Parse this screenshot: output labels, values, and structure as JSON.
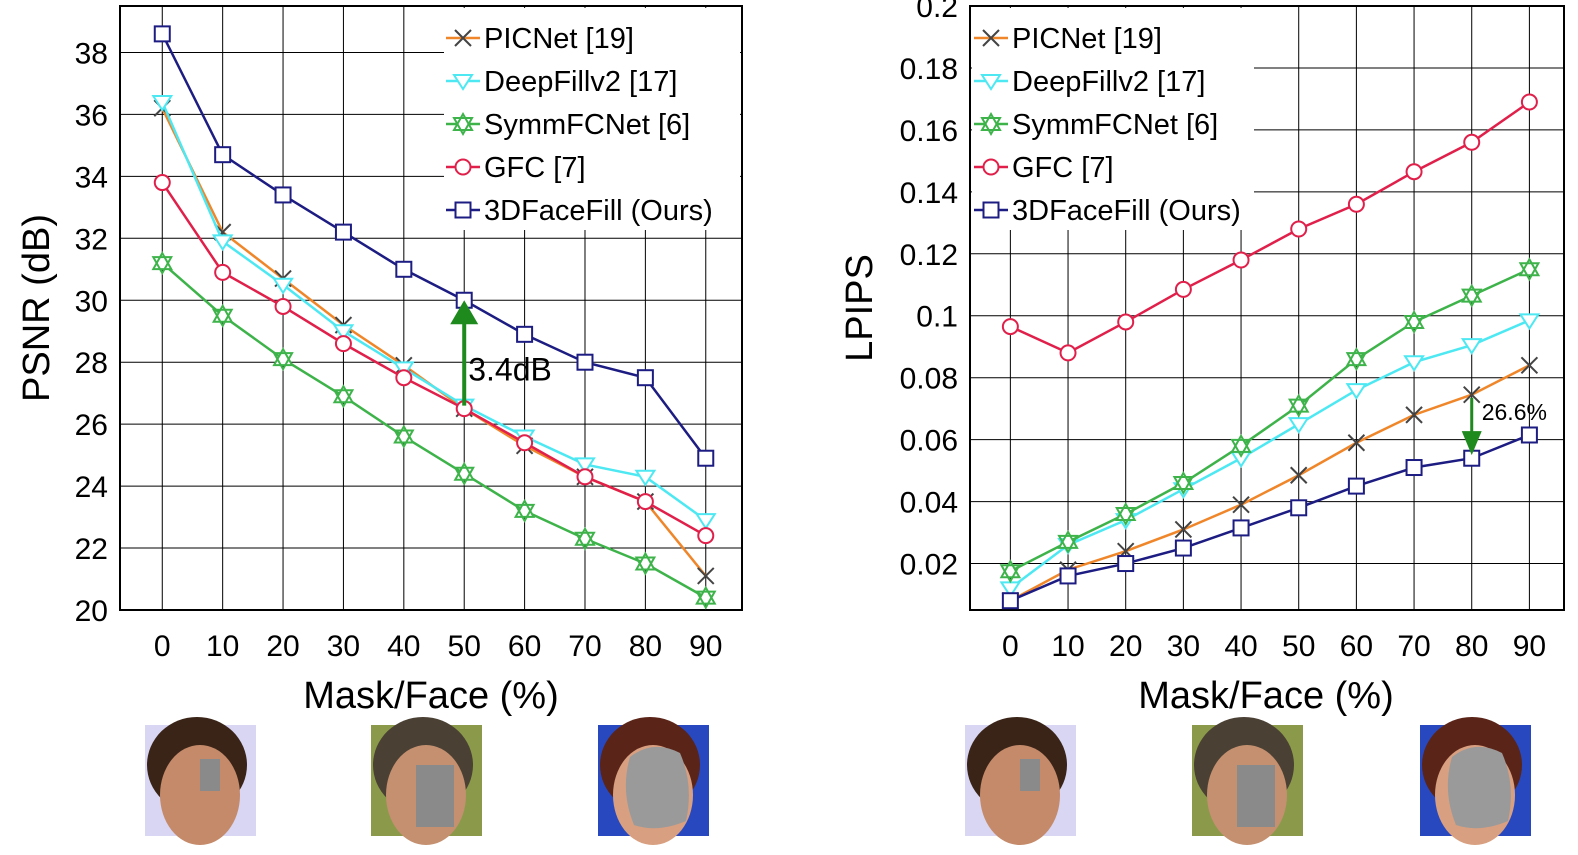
{
  "colors": {
    "PICNet": "#f0862a",
    "DeepFillv2": "#4de8f2",
    "SymmFCNet": "#3db34a",
    "GFC": "#e0204a",
    "3DFaceFill": "#1c1c82",
    "marker_x": "#444444",
    "arrow": "#1e8a1e",
    "grid": "#000000"
  },
  "chart_data": [
    {
      "type": "line",
      "title": "",
      "xlabel": "Mask/Face (%)",
      "ylabel": "PSNR (dB)",
      "x": [
        0,
        10,
        20,
        30,
        40,
        50,
        60,
        70,
        80,
        90
      ],
      "xlim": [
        -7,
        96
      ],
      "ylim": [
        20,
        39.5
      ],
      "yticks": [
        20,
        22,
        24,
        26,
        28,
        30,
        32,
        34,
        36,
        38
      ],
      "ytick_labels": [
        "20",
        "22",
        "24",
        "26",
        "28",
        "30",
        "32",
        "34",
        "36",
        "38"
      ],
      "xtick_labels": [
        "0",
        "10",
        "20",
        "30",
        "40",
        "50",
        "60",
        "70",
        "80",
        "90"
      ],
      "grid": true,
      "legend_position": "top-right",
      "series": [
        {
          "name": "PICNet [19]",
          "marker": "x",
          "values": [
            36.2,
            32.2,
            30.7,
            29.2,
            27.9,
            26.5,
            25.3,
            24.3,
            23.5,
            21.1
          ]
        },
        {
          "name": "DeepFillv2 [17]",
          "marker": "tri-down",
          "values": [
            36.4,
            31.9,
            30.5,
            29.0,
            27.8,
            26.6,
            25.6,
            24.7,
            24.3,
            22.9
          ]
        },
        {
          "name": "SymmFCNet [6]",
          "marker": "star",
          "values": [
            31.2,
            29.5,
            28.1,
            26.9,
            25.6,
            24.4,
            23.2,
            22.3,
            21.5,
            20.4
          ]
        },
        {
          "name": "GFC [7]",
          "marker": "circle",
          "values": [
            33.8,
            30.9,
            29.8,
            28.6,
            27.5,
            26.5,
            25.4,
            24.3,
            23.5,
            22.4
          ]
        },
        {
          "name": "3DFaceFill (Ours)",
          "marker": "square",
          "values": [
            38.6,
            34.7,
            33.4,
            32.2,
            31.0,
            30.0,
            28.9,
            28.0,
            27.5,
            24.9
          ]
        }
      ],
      "annotation": {
        "text": "3.4dB",
        "x": 50,
        "from": 26.6,
        "to": 30.0
      }
    },
    {
      "type": "line",
      "title": "",
      "xlabel": "Mask/Face (%)",
      "ylabel": "LPIPS",
      "x": [
        0,
        10,
        20,
        30,
        40,
        50,
        60,
        70,
        80,
        90
      ],
      "xlim": [
        -7,
        96
      ],
      "ylim": [
        0.005,
        0.2
      ],
      "yticks": [
        0.02,
        0.04,
        0.06,
        0.08,
        0.1,
        0.12,
        0.14,
        0.16,
        0.18,
        0.2
      ],
      "ytick_labels": [
        "0.02",
        "0.04",
        "0.06",
        "0.08",
        "0.1",
        "0.12",
        "0.14",
        "0.16",
        "0.18",
        "0.2"
      ],
      "xtick_labels": [
        "0",
        "10",
        "20",
        "30",
        "40",
        "50",
        "60",
        "70",
        "80",
        "90"
      ],
      "grid": true,
      "legend_position": "top-left",
      "series": [
        {
          "name": "PICNet [19]",
          "marker": "x",
          "values": [
            0.008,
            0.018,
            0.024,
            0.031,
            0.039,
            0.0485,
            0.059,
            0.068,
            0.0745,
            0.084
          ]
        },
        {
          "name": "DeepFillv2 [17]",
          "marker": "tri-down",
          "values": [
            0.012,
            0.026,
            0.034,
            0.044,
            0.054,
            0.065,
            0.076,
            0.085,
            0.0905,
            0.0985
          ]
        },
        {
          "name": "SymmFCNet [6]",
          "marker": "star",
          "values": [
            0.0175,
            0.027,
            0.036,
            0.046,
            0.058,
            0.071,
            0.086,
            0.098,
            0.1065,
            0.115
          ]
        },
        {
          "name": "GFC [7]",
          "marker": "circle",
          "values": [
            0.0965,
            0.088,
            0.098,
            0.1085,
            0.118,
            0.128,
            0.136,
            0.1465,
            0.156,
            0.169
          ]
        },
        {
          "name": "3DFaceFill (Ours)",
          "marker": "square",
          "values": [
            0.008,
            0.016,
            0.02,
            0.025,
            0.0315,
            0.038,
            0.045,
            0.051,
            0.054,
            0.0615
          ]
        }
      ],
      "annotation": {
        "text": "26.6%",
        "x": 80,
        "from": 0.0735,
        "to": 0.055
      }
    }
  ],
  "thumbnails": [
    {
      "scene": "smiling woman face, small grey mask",
      "bg": "#d8d6f2",
      "skin": "#c48a6a",
      "hair": "#3a2418",
      "mask": "#8a8a8a"
    },
    {
      "scene": "man face, medium grey mask",
      "bg": "#8a9a4a",
      "skin": "#c49070",
      "hair": "#4a4034",
      "mask": "#8a8a8a"
    },
    {
      "scene": "woman face, large grey mask",
      "bg": "#2848c0",
      "skin": "#d8a080",
      "hair": "#5a2418",
      "mask": "#9a9a9a"
    }
  ]
}
